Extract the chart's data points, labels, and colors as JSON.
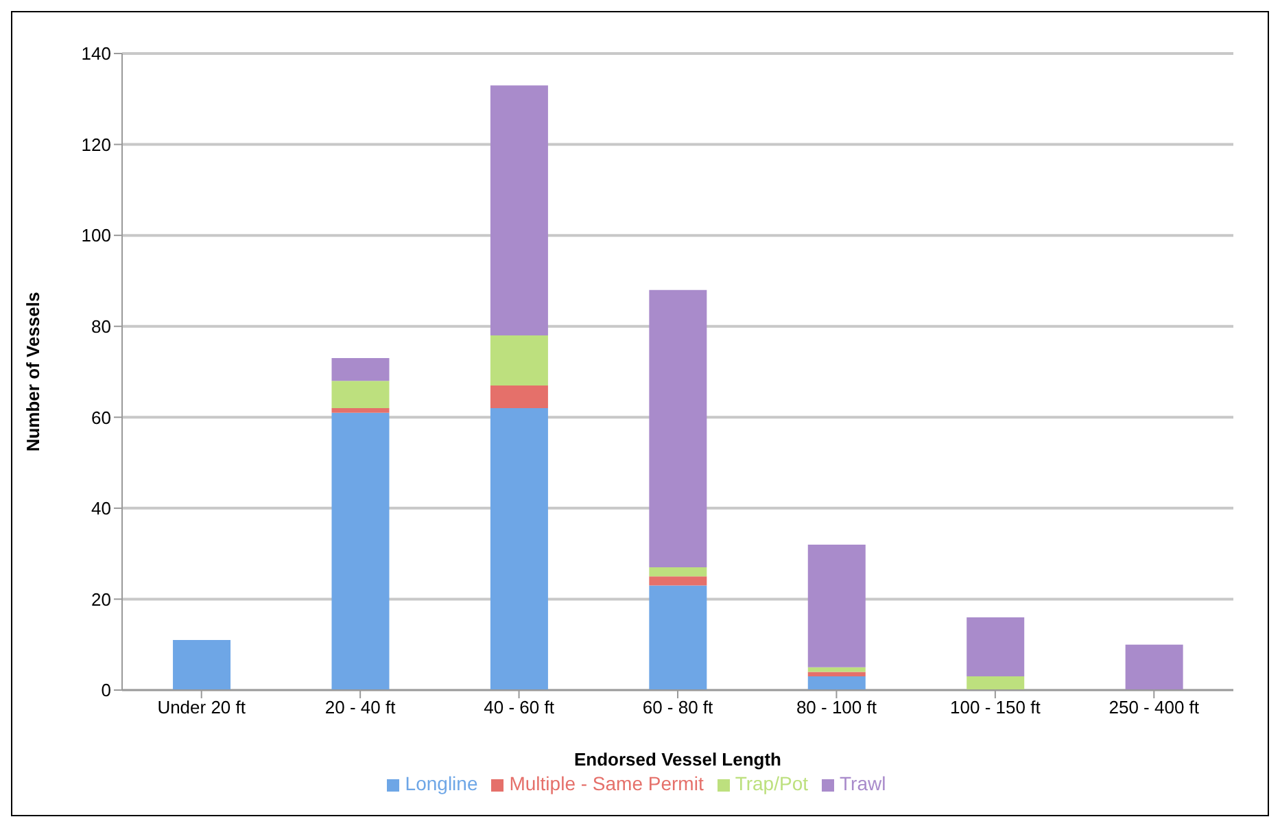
{
  "chart_data": {
    "type": "bar",
    "stacked": true,
    "xlabel": "Endorsed Vessel Length",
    "ylabel": "Number of Vessels",
    "categories": [
      "Under 20 ft",
      "20 - 40 ft",
      "40 - 60 ft",
      "60 - 80 ft",
      "80 - 100 ft",
      "100 - 150 ft",
      "250 - 400 ft"
    ],
    "series": [
      {
        "name": "Longline",
        "color": "#6ea6e6",
        "values": [
          11,
          61,
          62,
          23,
          3,
          0,
          0
        ]
      },
      {
        "name": "Multiple - Same Permit",
        "color": "#e5706a",
        "values": [
          0,
          1,
          5,
          2,
          1,
          0,
          0
        ]
      },
      {
        "name": "Trap/Pot",
        "color": "#bde07e",
        "values": [
          0,
          6,
          11,
          2,
          1,
          3,
          0
        ]
      },
      {
        "name": "Trawl",
        "color": "#a98bcb",
        "values": [
          0,
          5,
          55,
          61,
          27,
          13,
          10
        ]
      }
    ],
    "ylim": [
      0,
      140
    ],
    "yticks": [
      0,
      20,
      40,
      60,
      80,
      100,
      120,
      140
    ],
    "grid": "y",
    "legend": "bottom"
  }
}
